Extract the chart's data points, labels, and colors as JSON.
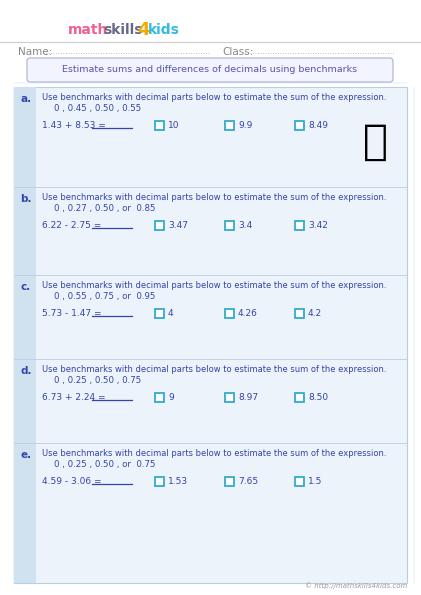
{
  "title": "Estimate sums and differences of decimals using benchmarks",
  "name_label": "Name:",
  "class_label": "Class:",
  "copyright": "© http://mathskills4kids.com",
  "bg_color": "#ffffff",
  "grid_color": "#c5d8ea",
  "content_bg": "#edf3fb",
  "border_color": "#b8cfe0",
  "title_color": "#5555aa",
  "text_color": "#3344aa",
  "checkbox_color": "#33aacc",
  "letter_color": "#3344aa",
  "left_strip_color": "#d0e2f0",
  "name_dot_color": "#aaaaaa",
  "title_box_color": "#f2f5ff",
  "title_box_border": "#aab0cc",
  "logo_math_color": "#f06090",
  "logo_skills_color": "#666688",
  "logo_4_color": "#f5aa00",
  "logo_kids_color": "#33bbdd",
  "header_line_color": "#cccccc",
  "problems": [
    {
      "letter": "a.",
      "instruction": "Use benchmarks with decimal parts below to estimate the sum of the expression.",
      "benchmarks": "0 , 0.45 , 0.50 , 0.55",
      "equation": "1.43 + 8.53 =",
      "choices": [
        "10",
        "9.9",
        "8.49"
      ],
      "has_girl": true
    },
    {
      "letter": "b.",
      "instruction": "Use benchmarks with decimal parts below to estimate the sum of the expression.",
      "benchmarks": "0 , 0.27 , 0.50 , or  0.85",
      "equation": "6.22 - 2.75 =",
      "choices": [
        "3.47",
        "3.4",
        "3.42"
      ],
      "has_girl": false
    },
    {
      "letter": "c.",
      "instruction": "Use benchmarks with decimal parts below to estimate the sum of the expression.",
      "benchmarks": "0 , 0.55 , 0.75 , or  0.95",
      "equation": "5.73 - 1.47 =",
      "choices": [
        "4",
        "4.26",
        "4.2"
      ],
      "has_girl": false
    },
    {
      "letter": "d.",
      "instruction": "Use benchmarks with decimal parts below to estimate the sum of the expression.",
      "benchmarks": "0 , 0.25 , 0.50 , 0.75",
      "equation": "6.73 + 2.24 =",
      "choices": [
        "9",
        "8.97",
        "8.50"
      ],
      "has_girl": false
    },
    {
      "letter": "e.",
      "instruction": "Use benchmarks with decimal parts below to estimate the sum of the expression.",
      "benchmarks": "0 , 0.25 , 0.50 , or  0.75",
      "equation": "4.59 - 3.06 =",
      "choices": [
        "1.53",
        "7.65",
        "1.5"
      ],
      "has_girl": false
    }
  ]
}
